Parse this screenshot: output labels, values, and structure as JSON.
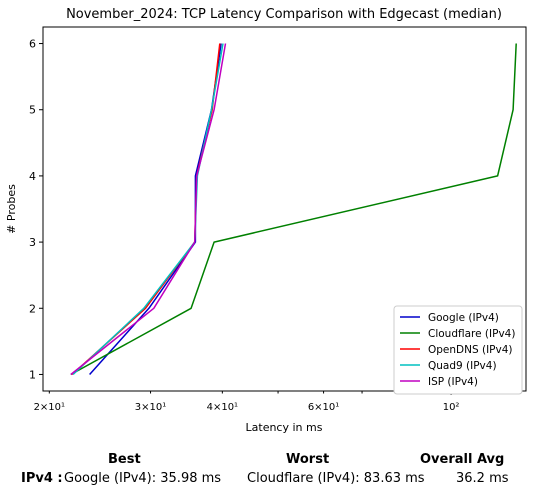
{
  "chart_data": {
    "type": "line",
    "title": "November_2024: TCP Latency Comparison with Edgecast (median)",
    "xlabel": "Latency in ms",
    "ylabel": "# Probes",
    "xscale": "log",
    "xlim": [
      19.5,
      135
    ],
    "ylim": [
      0.75,
      6.25
    ],
    "x_ticks": [
      {
        "value": 20,
        "label": "2×10¹"
      },
      {
        "value": 30,
        "label": "3×10¹"
      },
      {
        "value": 40,
        "label": "4×10¹"
      },
      {
        "value": 60,
        "label": "6×10¹"
      },
      {
        "value": 100,
        "label": "10²"
      }
    ],
    "y_ticks": [
      1,
      2,
      3,
      4,
      5,
      6
    ],
    "legend_position": "lower-right",
    "grid": false,
    "series": [
      {
        "name": "Google (IPv4)",
        "color": "#0000cc",
        "points": [
          [
            23.5,
            1
          ],
          [
            29.8,
            2
          ],
          [
            35.9,
            3
          ],
          [
            35.9,
            4
          ],
          [
            38.3,
            5
          ],
          [
            39.8,
            6
          ]
        ]
      },
      {
        "name": "Cloudflare (IPv4)",
        "color": "#008000",
        "points": [
          [
            21.8,
            1
          ],
          [
            35.3,
            2
          ],
          [
            38.7,
            3
          ],
          [
            120.5,
            4
          ],
          [
            128.2,
            5
          ],
          [
            129.8,
            6
          ]
        ]
      },
      {
        "name": "OpenDNS (IPv4)",
        "color": "#ff0000",
        "points": [
          [
            21.9,
            1
          ],
          [
            29.4,
            2
          ],
          [
            35.8,
            3
          ],
          [
            36.1,
            4
          ],
          [
            38.4,
            5
          ],
          [
            39.6,
            6
          ]
        ]
      },
      {
        "name": "Quad9 (IPv4)",
        "color": "#00c0c0",
        "points": [
          [
            22.0,
            1
          ],
          [
            29.2,
            2
          ],
          [
            35.8,
            3
          ],
          [
            36.2,
            4
          ],
          [
            38.3,
            5
          ],
          [
            40.1,
            6
          ]
        ]
      },
      {
        "name": "ISP (IPv4)",
        "color": "#c000c0",
        "points": [
          [
            21.8,
            1
          ],
          [
            30.4,
            2
          ],
          [
            35.8,
            3
          ],
          [
            36.1,
            4
          ],
          [
            38.7,
            5
          ],
          [
            40.5,
            6
          ]
        ]
      }
    ]
  },
  "summary": {
    "best_label": "Best",
    "worst_label": "Worst",
    "avg_label": "Overall Avg",
    "row_label": "IPv4 :",
    "best_value": "Google (IPv4): 35.98 ms",
    "worst_value": "Cloudflare (IPv4): 83.63 ms",
    "avg_value": "36.2 ms"
  }
}
